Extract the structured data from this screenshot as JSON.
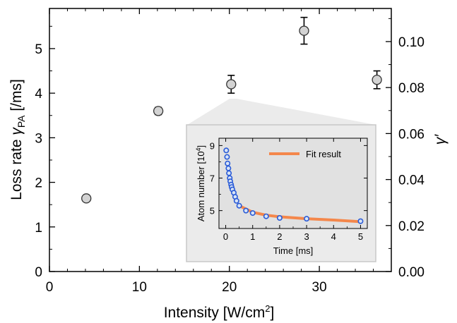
{
  "chart_data": [
    {
      "type": "scatter",
      "xlabel": "Intensity [W/cm",
      "xlabel_sup": "2",
      "xlabel_end": "]",
      "ylabel_left": "Loss rate ",
      "ylabel_left_symbol": "γ",
      "ylabel_left_sub": "PA",
      "ylabel_left_unit": " [/ms]",
      "ylabel_right": "γ′",
      "xlim": [
        0,
        38
      ],
      "ylim_left": [
        0,
        5.9
      ],
      "ylim_right": [
        0,
        0.1144
      ],
      "x_ticks": [
        "0",
        "10",
        "20",
        "30"
      ],
      "y_ticks_left": [
        "0",
        "1",
        "2",
        "3",
        "4",
        "5"
      ],
      "y_ticks_right": [
        "0.00",
        "0.02",
        "0.04",
        "0.06",
        "0.08",
        "0.10"
      ],
      "series": [
        {
          "points": [
            {
              "x": 4.1,
              "y": 1.64,
              "err": 0
            },
            {
              "x": 12.1,
              "y": 3.6,
              "err": 0.08
            },
            {
              "x": 20.2,
              "y": 4.2,
              "err": 0.2
            },
            {
              "x": 28.3,
              "y": 5.4,
              "err": 0.3
            },
            {
              "x": 36.4,
              "y": 4.3,
              "err": 0.2
            }
          ],
          "color": "#d3d3d3"
        }
      ],
      "grid": false
    },
    {
      "type": "scatter",
      "xlabel": "Time [ms]",
      "ylabel": "Atom number [10",
      "ylabel_sup": "4",
      "ylabel_end": "]",
      "xlim": [
        -0.25,
        5.25
      ],
      "ylim": [
        3.9,
        9.45
      ],
      "x_ticks": [
        "0",
        "1",
        "2",
        "3",
        "4",
        "5"
      ],
      "y_ticks": [
        "5",
        "7",
        "9"
      ],
      "series": [
        {
          "x": [
            0.02,
            0.05,
            0.07,
            0.1,
            0.12,
            0.15,
            0.17,
            0.2,
            0.22,
            0.25,
            0.3,
            0.35,
            0.4,
            0.5,
            0.75,
            1.0,
            1.5,
            2.0,
            3.0,
            5.0
          ],
          "y": [
            8.7,
            8.3,
            7.9,
            7.6,
            7.3,
            7.0,
            6.8,
            6.6,
            6.45,
            6.3,
            6.1,
            5.85,
            5.6,
            5.3,
            5.0,
            4.85,
            4.65,
            4.55,
            4.5,
            4.35
          ],
          "color": "#4472c4"
        },
        {
          "name": "Fit result",
          "x": [
            0.5,
            1.0,
            1.5,
            2.0,
            3.0,
            4.0,
            5.0
          ],
          "y": [
            5.3,
            4.9,
            4.72,
            4.62,
            4.5,
            4.42,
            4.32
          ],
          "color": "#f4874b"
        }
      ],
      "legend_position": "top-right",
      "grid": false
    }
  ],
  "colors": {
    "inset_background": "#ebebeb",
    "inset_border": "#c8c8c8",
    "inset_frame": "#e1e1e1",
    "main_marker_edge": "#333333",
    "inset_marker_edge": "#2a5bd7",
    "inset_marker_fill": "#d8e4f6"
  }
}
